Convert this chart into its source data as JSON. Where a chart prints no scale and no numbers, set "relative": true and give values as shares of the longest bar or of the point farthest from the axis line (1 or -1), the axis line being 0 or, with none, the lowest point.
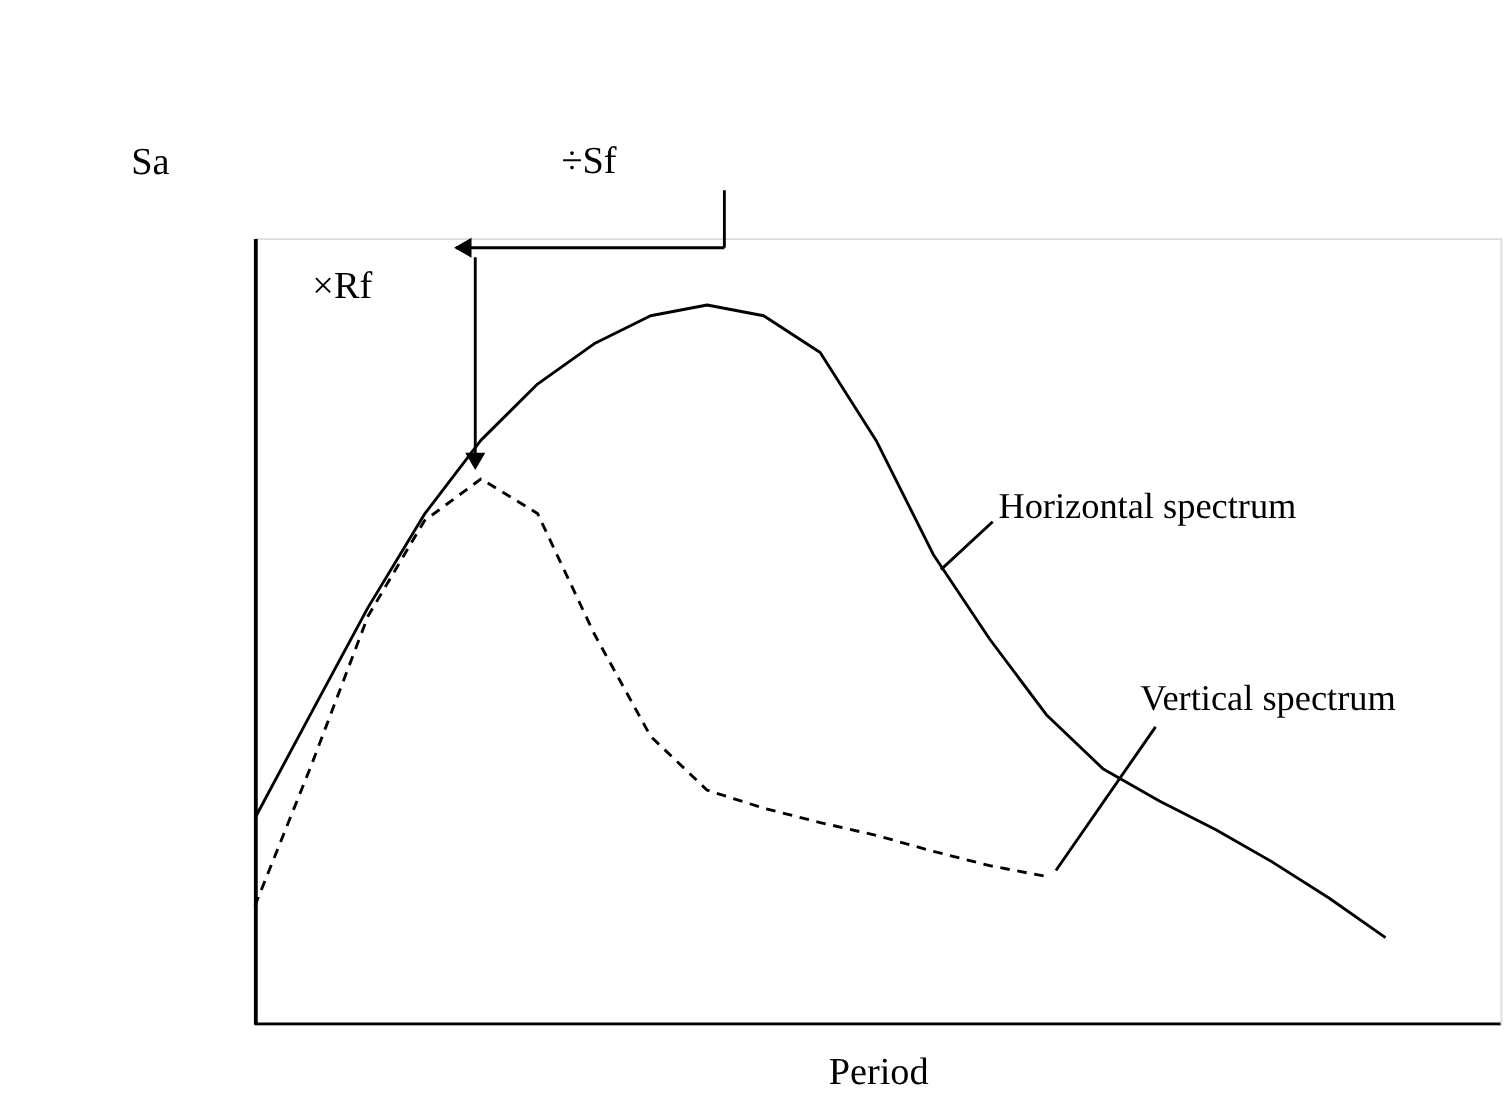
{
  "chart_data": {
    "type": "line",
    "relative": true,
    "xlabel": "Period",
    "ylabel": "Sa",
    "grid": false,
    "marker": "none",
    "categories": [
      null,
      null,
      null,
      null,
      null,
      null,
      null,
      null,
      null,
      null,
      null,
      null,
      null,
      null,
      null,
      null,
      null,
      null,
      null,
      null,
      null
    ],
    "series": [
      {
        "name": "Horizontal spectrum",
        "color": "#000000",
        "line_style": "solid",
        "values": [
          0.286,
          0.433,
          0.579,
          0.709,
          0.812,
          0.89,
          0.946,
          0.985,
          1,
          0.985,
          0.934,
          0.81,
          0.653,
          0.535,
          0.43,
          0.355,
          0.31,
          0.27,
          0.225,
          0.175,
          0.12
        ]
      },
      {
        "name": "Vertical spectrum",
        "color": "#000000",
        "line_style": "dashed",
        "values": [
          0.164,
          0.36,
          0.567,
          0.7,
          0.758,
          0.71,
          0.543,
          0.4,
          0.325,
          0.3,
          0.28,
          0.262,
          0.24,
          0.22,
          0.205,
          null,
          null,
          null,
          null,
          null,
          null
        ]
      }
    ],
    "annotations": [
      "÷Sf",
      "×Rf"
    ]
  }
}
